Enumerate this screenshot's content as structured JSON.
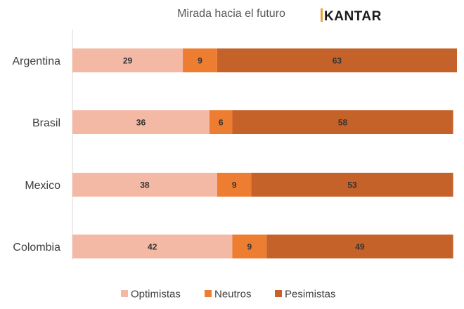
{
  "chart_data": {
    "type": "bar",
    "orientation": "horizontal",
    "stacked": true,
    "title": "Mirada hacia el futuro",
    "brand": "KANTAR",
    "categories": [
      "Argentina",
      "Brasil",
      "Mexico",
      "Colombia"
    ],
    "series": [
      {
        "name": "Optimistas",
        "values": [
          29,
          36,
          38,
          42
        ],
        "color": "#F4B9A4"
      },
      {
        "name": "Neutros",
        "values": [
          9,
          6,
          9,
          9
        ],
        "color": "#ED7D31"
      },
      {
        "name": "Pesimistas",
        "values": [
          63,
          58,
          53,
          49
        ],
        "color": "#C5622A"
      }
    ],
    "xlim": [
      0,
      101
    ],
    "grid": false,
    "legend": "bottom",
    "brand_accent_color": "#E8A33A"
  }
}
